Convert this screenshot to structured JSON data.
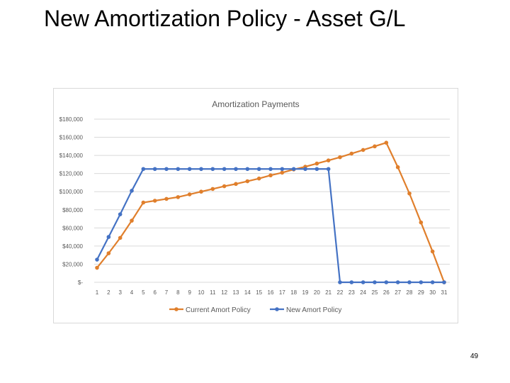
{
  "slide": {
    "title": "New Amortization Policy - Asset G/L",
    "page_number": "49"
  },
  "colors": {
    "current": "#E07F2C",
    "new": "#4472C4",
    "grid": "#d9d9d9",
    "text": "#595959"
  },
  "chart_data": {
    "type": "line",
    "title": "Amortization Payments",
    "xlabel": "",
    "ylabel": "",
    "categories": [
      "1",
      "2",
      "3",
      "4",
      "5",
      "6",
      "7",
      "8",
      "9",
      "10",
      "11",
      "12",
      "13",
      "14",
      "15",
      "16",
      "17",
      "18",
      "19",
      "20",
      "21",
      "22",
      "23",
      "24",
      "25",
      "26",
      "27",
      "28",
      "29",
      "30",
      "31"
    ],
    "y_tick_labels": [
      "$-",
      "$20,000",
      "$40,000",
      "$60,000",
      "$80,000",
      "$100,000",
      "$120,000",
      "$140,000",
      "$160,000",
      "$180,000"
    ],
    "y_tick_values": [
      0,
      20000,
      40000,
      60000,
      80000,
      100000,
      120000,
      140000,
      160000,
      180000
    ],
    "ylim": [
      0,
      180000
    ],
    "grid": true,
    "legend_position": "bottom",
    "series": [
      {
        "name": "Current Amort Policy",
        "values": [
          16000,
          32000,
          49000,
          68000,
          88000,
          90000,
          92000,
          94000,
          97000,
          100000,
          103000,
          106000,
          108500,
          111500,
          114500,
          118000,
          121000,
          124500,
          127500,
          131000,
          134500,
          138000,
          142000,
          146000,
          150000,
          154000,
          127000,
          98000,
          66000,
          34000,
          0
        ]
      },
      {
        "name": "New Amort Policy",
        "values": [
          25000,
          50000,
          75000,
          101000,
          125000,
          125000,
          125000,
          125000,
          125000,
          125000,
          125000,
          125000,
          125000,
          125000,
          125000,
          125000,
          125000,
          125000,
          125000,
          125000,
          125000,
          0,
          0,
          0,
          0,
          0,
          0,
          0,
          0,
          0,
          0
        ]
      }
    ]
  }
}
